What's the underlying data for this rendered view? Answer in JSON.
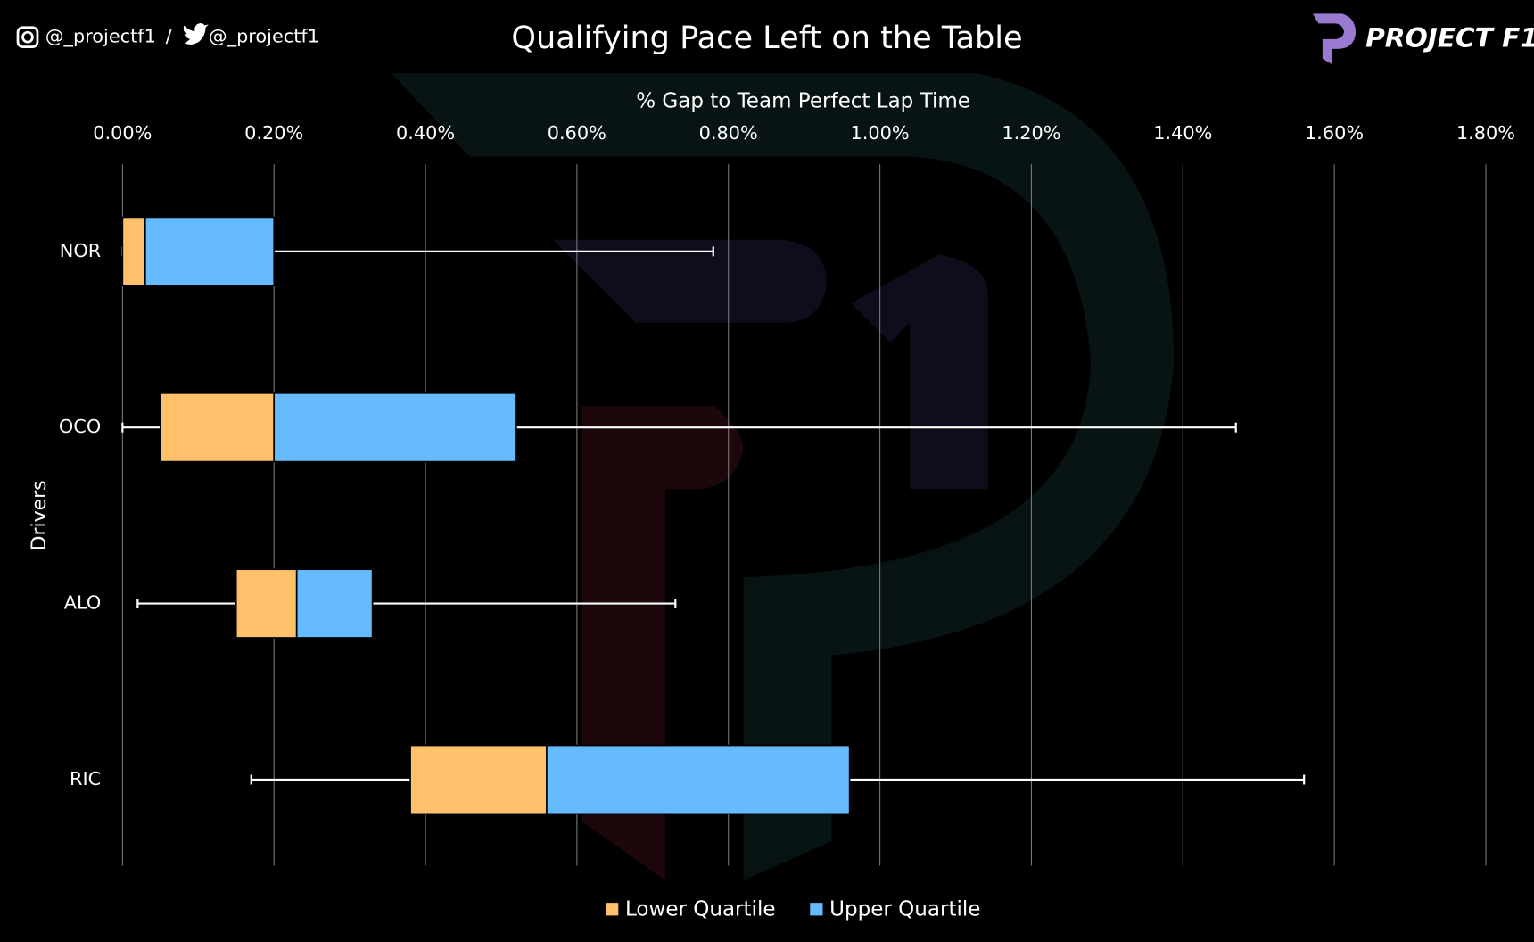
{
  "chart_data": {
    "type": "boxplot",
    "title": "Qualifying Pace Left on the Table",
    "handles": [
      "@_projectf1",
      "@_projectf1"
    ],
    "logo": "PROJECT F1",
    "x_label": "% Gap to Team Perfect Lap Time",
    "y_label": "Drivers",
    "categories": [
      "NOR",
      "OCO",
      "ALO",
      "RIC"
    ],
    "boxes": [
      {
        "min": 0.0,
        "q1": 0.0,
        "median": 0.03,
        "q3": 0.2,
        "max": 0.78
      },
      {
        "min": 0.0,
        "q1": 0.05,
        "median": 0.2,
        "q3": 0.52,
        "max": 1.47
      },
      {
        "min": 0.02,
        "q1": 0.15,
        "median": 0.23,
        "q3": 0.33,
        "max": 0.73
      },
      {
        "min": 0.17,
        "q1": 0.38,
        "median": 0.56,
        "q3": 0.96,
        "max": 1.56
      }
    ],
    "series": [
      {
        "name": "Lower Quartile",
        "color": "#ffc06b"
      },
      {
        "name": "Upper Quartile",
        "color": "#66bbff"
      }
    ],
    "xlim": [
      0,
      1.8
    ],
    "xticks": [
      {
        "value": 0,
        "label": "0.00%"
      },
      {
        "value": 0.2,
        "label": "0.20%"
      },
      {
        "value": 0.4,
        "label": "0.40%"
      },
      {
        "value": 0.6,
        "label": "0.60%"
      },
      {
        "value": 0.8,
        "label": "0.80%"
      },
      {
        "value": 1.0,
        "label": "1.00%"
      },
      {
        "value": 1.2,
        "label": "1.20%"
      },
      {
        "value": 1.4,
        "label": "1.40%"
      },
      {
        "value": 1.6,
        "label": "1.60%"
      },
      {
        "value": 1.8,
        "label": "1.80%"
      }
    ],
    "grid": true,
    "whisker_color": "#ffffff"
  }
}
